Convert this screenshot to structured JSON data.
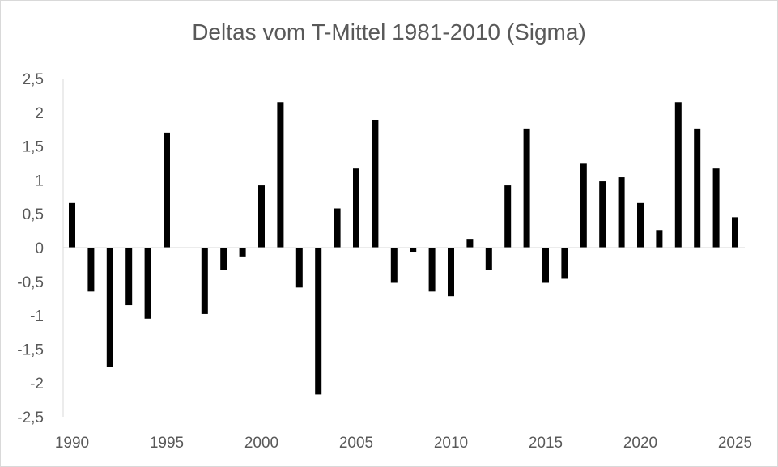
{
  "chart_data": {
    "type": "bar",
    "title": "Deltas vom T-Mittel 1981-2010 (Sigma)",
    "xlabel": "",
    "ylabel": "",
    "ylim": [
      -2.5,
      2.5
    ],
    "y_ticks": [
      "2,5",
      "2",
      "1,5",
      "1",
      "0,5",
      "0",
      "-0,5",
      "-1",
      "-1,5",
      "-2",
      "-2,5"
    ],
    "y_tick_values": [
      2.5,
      2,
      1.5,
      1,
      0.5,
      0,
      -0.5,
      -1,
      -1.5,
      -2,
      -2.5
    ],
    "x_ticks": [
      "1990",
      "1995",
      "2000",
      "2005",
      "2010",
      "2015",
      "2020",
      "2025"
    ],
    "x_tick_values": [
      1990,
      1995,
      2000,
      2005,
      2010,
      2015,
      2020,
      2025
    ],
    "grid": false,
    "bar_color": "#000000",
    "axis_color": "#d9d9d9",
    "text_color": "#595959",
    "series": [
      {
        "x": [
          1990,
          1991,
          1992,
          1993,
          1994,
          1995,
          1996,
          1997,
          1998,
          1999,
          2000,
          2001,
          2002,
          2003,
          2004,
          2005,
          2006,
          2007,
          2008,
          2009,
          2010,
          2011,
          2012,
          2013,
          2014,
          2015,
          2016,
          2017,
          2018,
          2019,
          2020,
          2021,
          2022,
          2023,
          2024,
          2025
        ],
        "values": [
          0.66,
          -0.65,
          -1.77,
          -0.85,
          -1.05,
          1.7,
          0.0,
          -0.98,
          -0.33,
          -0.13,
          0.92,
          2.15,
          -0.59,
          -2.17,
          0.58,
          1.17,
          1.89,
          -0.52,
          -0.06,
          -0.65,
          -0.72,
          0.13,
          -0.33,
          0.92,
          1.76,
          -0.52,
          -0.46,
          1.24,
          0.98,
          1.04,
          0.66,
          0.26,
          2.15,
          1.76,
          1.17,
          0.45
        ]
      }
    ]
  }
}
